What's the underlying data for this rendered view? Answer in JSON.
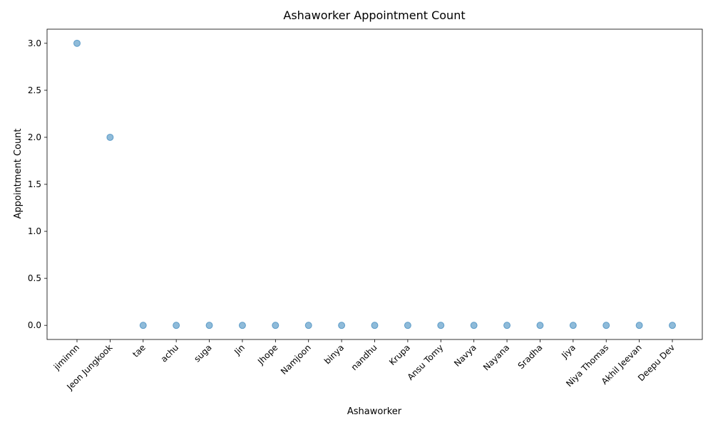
{
  "chart_data": {
    "type": "scatter",
    "title": "Ashaworker Appointment Count",
    "xlabel": "Ashaworker",
    "ylabel": "Appointment Count",
    "categories": [
      "jiminnn",
      "Jeon Jungkook",
      "tae",
      "achu",
      "suga",
      "Jin",
      "Jhope",
      "Namjoon",
      "binya",
      "nandhu",
      "Krupa",
      "Ansu Tomy",
      "Navya",
      "Nayana",
      "Sradha",
      "Jiya",
      "Niya Thomas",
      "Akhil Jeevan",
      "Deepu Dev"
    ],
    "values": [
      3,
      2,
      0,
      0,
      0,
      0,
      0,
      0,
      0,
      0,
      0,
      0,
      0,
      0,
      0,
      0,
      0,
      0,
      0
    ],
    "ylim": [
      -0.15,
      3.15
    ],
    "yticks": [
      "0.0",
      "0.5",
      "1.0",
      "1.5",
      "2.0",
      "2.5",
      "3.0"
    ],
    "marker_color": "#1f77b4",
    "marker_alpha": 0.5,
    "grid": false
  }
}
